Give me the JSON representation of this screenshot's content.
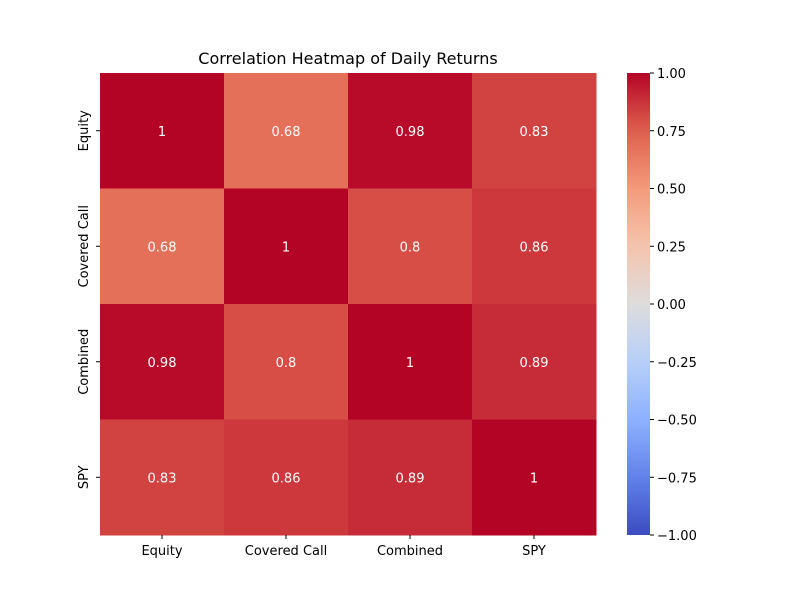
{
  "chart_data": {
    "type": "heatmap",
    "title": "Correlation Heatmap of Daily Returns",
    "x_labels": [
      "Equity",
      "Covered Call",
      "Combined",
      "SPY"
    ],
    "y_labels": [
      "Equity",
      "Covered Call",
      "Combined",
      "SPY"
    ],
    "values": [
      [
        1.0,
        0.68,
        0.98,
        0.83
      ],
      [
        0.68,
        1.0,
        0.8,
        0.86
      ],
      [
        0.98,
        0.8,
        1.0,
        0.89
      ],
      [
        0.83,
        0.86,
        0.89,
        1.0
      ]
    ],
    "annotations": [
      [
        "1",
        "0.68",
        "0.98",
        "0.83"
      ],
      [
        "0.68",
        "1",
        "0.8",
        "0.86"
      ],
      [
        "0.98",
        "0.8",
        "1",
        "0.89"
      ],
      [
        "0.83",
        "0.86",
        "0.89",
        "1"
      ]
    ],
    "colormap": "coolwarm",
    "vmin": -1.0,
    "vmax": 1.0,
    "colorbar_ticks": [
      1.0,
      0.75,
      0.5,
      0.25,
      0.0,
      -0.25,
      -0.5,
      -0.75,
      -1.0
    ],
    "colorbar_tick_labels": [
      "1.00",
      "0.75",
      "0.50",
      "0.25",
      "0.00",
      "−0.25",
      "−0.50",
      "−0.75",
      "−1.00"
    ],
    "colors": {
      "min": "#3b4cc0",
      "mid": "#dddcdc",
      "max": "#b40426",
      "annotation_text": "#ffffff",
      "tick_text": "#000000"
    }
  }
}
